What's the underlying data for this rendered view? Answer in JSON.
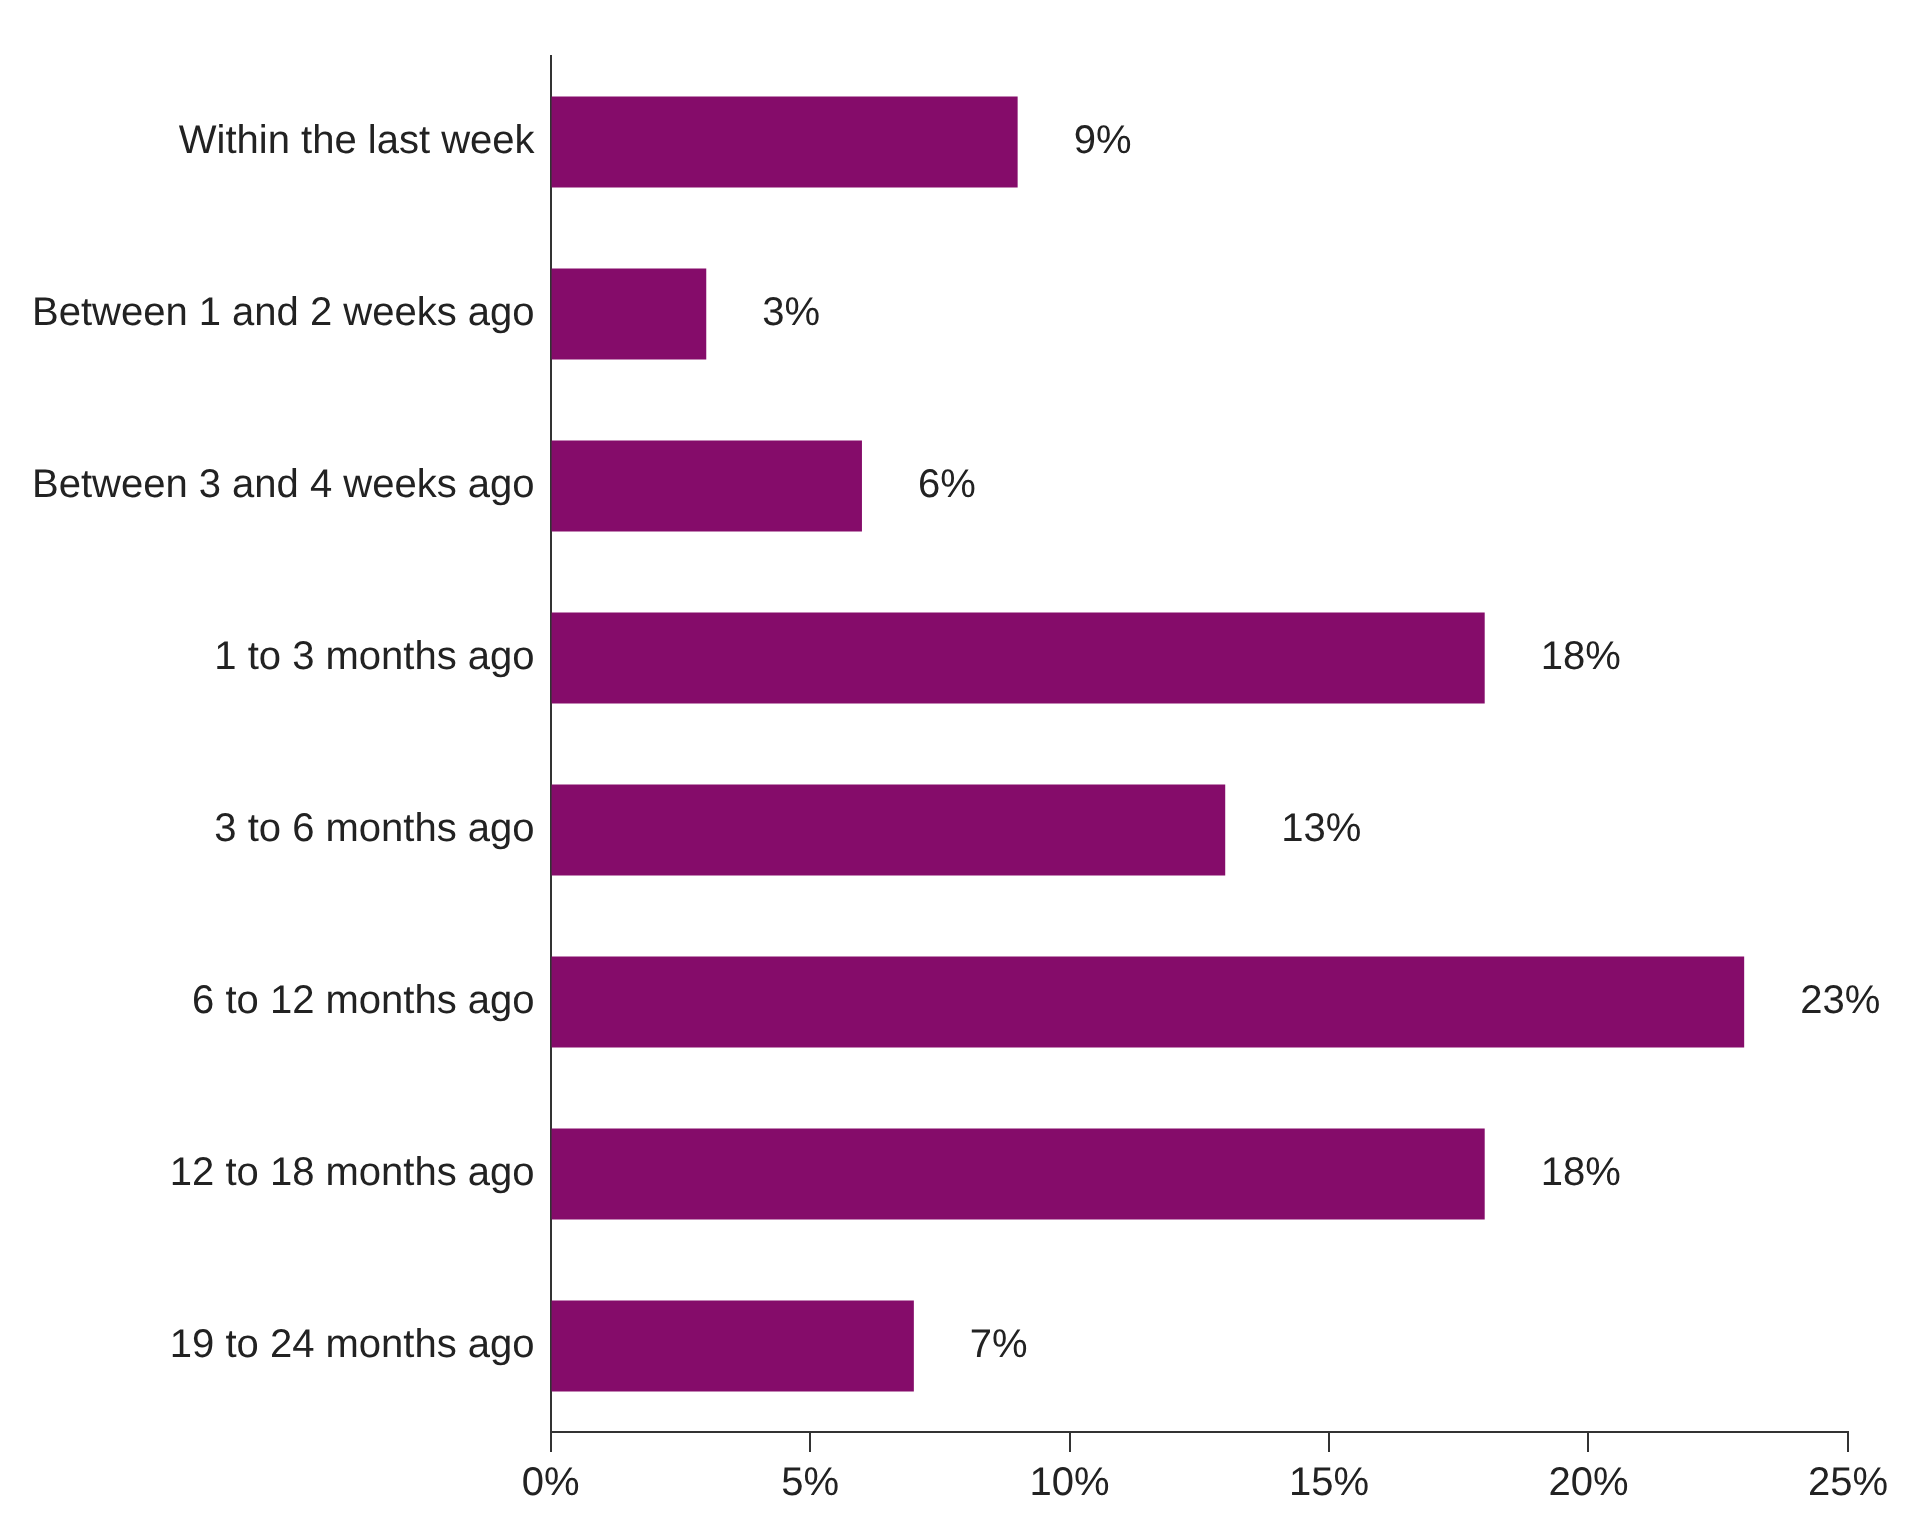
{
  "chart_data": {
    "type": "bar",
    "orientation": "horizontal",
    "categories": [
      "Within the last week",
      "Between 1 and 2 weeks ago",
      "Between 3 and 4 weeks ago",
      "1 to 3 months ago",
      "3 to 6 months ago",
      "6 to 12 months ago",
      "12 to 18 months ago",
      "19 to 24 months ago"
    ],
    "values": [
      9,
      3,
      6,
      18,
      13,
      23,
      18,
      7
    ],
    "value_labels": [
      "9%",
      "3%",
      "6%",
      "18%",
      "13%",
      "23%",
      "18%",
      "7%"
    ],
    "color": "#850c6a",
    "xlim": [
      0,
      25
    ],
    "xticks": [
      {
        "value": 0,
        "label": "0%"
      },
      {
        "value": 5,
        "label": "5%"
      },
      {
        "value": 10,
        "label": "10%"
      },
      {
        "value": 15,
        "label": "15%"
      },
      {
        "value": 20,
        "label": "20%"
      },
      {
        "value": 25,
        "label": "25%"
      }
    ],
    "grid": false,
    "legend": false
  }
}
